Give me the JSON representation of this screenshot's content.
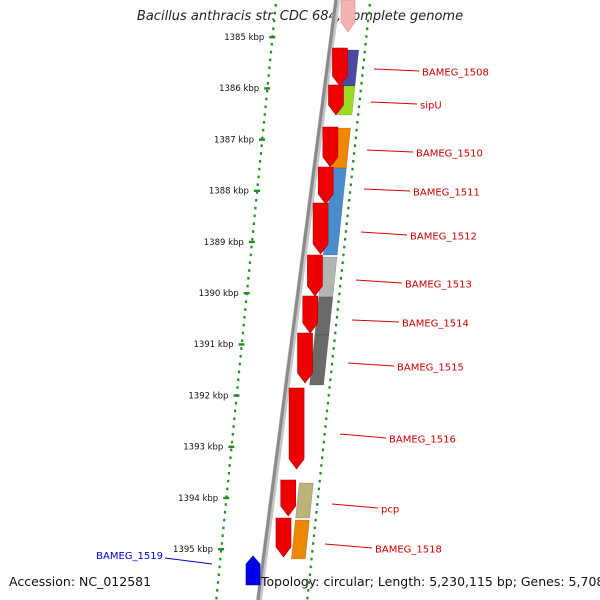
{
  "title": "Bacillus anthracis str. CDC 684, complete genome",
  "footer": {
    "accession": "Accession: NC_012581",
    "topology": "Topology: circular; Length: 5,230,115 bp; Genes: 5,708"
  },
  "scale": {
    "unit": "kbp",
    "ticks": [
      "1385 kbp",
      "1386 kbp",
      "1387 kbp",
      "1388 kbp",
      "1389 kbp",
      "1390 kbp",
      "1391 kbp",
      "1392 kbp",
      "1393 kbp",
      "1394 kbp",
      "1395 kbp"
    ]
  },
  "genes": [
    {
      "label": "BAMEG_1508",
      "color": "#cc0000"
    },
    {
      "label": "sipU",
      "color": "#cc0000"
    },
    {
      "label": "BAMEG_1510",
      "color": "#cc0000"
    },
    {
      "label": "BAMEG_1511",
      "color": "#cc0000"
    },
    {
      "label": "BAMEG_1512",
      "color": "#cc0000"
    },
    {
      "label": "BAMEG_1513",
      "color": "#cc0000"
    },
    {
      "label": "BAMEG_1514",
      "color": "#cc0000"
    },
    {
      "label": "BAMEG_1515",
      "color": "#cc0000"
    },
    {
      "label": "BAMEG_1516",
      "color": "#cc0000"
    },
    {
      "label": "pcp",
      "color": "#cc0000"
    },
    {
      "label": "BAMEG_1518",
      "color": "#cc0000"
    },
    {
      "label": "BAMEG_1519",
      "color": "#0000cc"
    }
  ],
  "colors": {
    "cds_forward": "#ee0000",
    "cds_reverse": "#0000ee",
    "backbone": "#8a8a8a",
    "tick": "#228b22",
    "cog_purple": "#4b4aa0",
    "cog_lime": "#99dd22",
    "cog_orange": "#ee8800",
    "cog_blue": "#4a8ccc",
    "cog_lightgray": "#b4b4b4",
    "cog_darkgray": "#6a6a6a",
    "cog_khaki": "#bcb27a"
  }
}
